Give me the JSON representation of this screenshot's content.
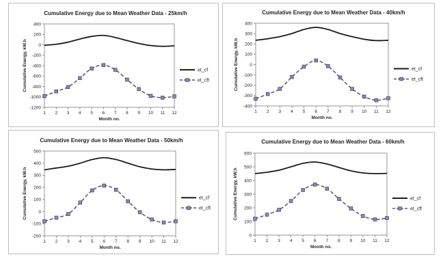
{
  "chart_data": [
    {
      "type": "line",
      "title": "Cumulative Energy due to Mean Weather Data - 25km/h",
      "xlabel": "Month no.",
      "ylabel": "Cumulative Energy, kW.h",
      "x": [
        1,
        2,
        3,
        4,
        5,
        6,
        7,
        8,
        9,
        10,
        11,
        12
      ],
      "xlim": [
        1,
        12
      ],
      "ylim": [
        -1200,
        400
      ],
      "yticks": [
        400,
        200,
        0,
        -200,
        -400,
        -600,
        -800,
        -1000,
        -1200
      ],
      "legend": "right",
      "series": [
        {
          "name": "et_cf",
          "color": "#1a1a1a",
          "style": "solid",
          "values": [
            -10,
            10,
            50,
            110,
            160,
            180,
            140,
            80,
            25,
            -15,
            -30,
            -20
          ]
        },
        {
          "name": "et_cft",
          "color": "#5a5a7a",
          "style": "dashed",
          "marker": "square",
          "values": [
            -985,
            -895,
            -810,
            -640,
            -455,
            -390,
            -480,
            -670,
            -850,
            -980,
            -1015,
            -990
          ]
        }
      ]
    },
    {
      "type": "line",
      "title": "Cumulative Energy due to Mean Weather Data - 40km/h",
      "xlabel": "Month no.",
      "ylabel": "Cumulative Energy, kW.h",
      "x": [
        1,
        2,
        3,
        4,
        5,
        6,
        7,
        8,
        9,
        10,
        11,
        12
      ],
      "xlim": [
        1,
        12
      ],
      "ylim": [
        -400,
        400
      ],
      "yticks": [
        400,
        300,
        200,
        100,
        0,
        -100,
        -200,
        -300,
        -400
      ],
      "legend": "right",
      "series": [
        {
          "name": "et_cf",
          "color": "#1a1a1a",
          "style": "solid",
          "values": [
            235,
            250,
            270,
            300,
            340,
            360,
            340,
            300,
            270,
            245,
            232,
            235
          ]
        },
        {
          "name": "et_cft",
          "color": "#5a5a7a",
          "style": "dashed",
          "marker": "square",
          "values": [
            -330,
            -285,
            -235,
            -120,
            -20,
            40,
            -15,
            -125,
            -235,
            -310,
            -345,
            -325
          ]
        }
      ]
    },
    {
      "type": "line",
      "title": "Cumulative Energy due to Mean Weather Data - 50km/h",
      "xlabel": "Month no.",
      "ylabel": "Cumulative Energy, kW.h",
      "x": [
        1,
        2,
        3,
        4,
        5,
        6,
        7,
        8,
        9,
        10,
        11,
        12
      ],
      "xlim": [
        1,
        12
      ],
      "ylim": [
        -200,
        500
      ],
      "yticks": [
        500,
        400,
        300,
        200,
        100,
        0,
        -100,
        -200
      ],
      "legend": "right",
      "series": [
        {
          "name": "et_cf",
          "color": "#1a1a1a",
          "style": "solid",
          "values": [
            345,
            360,
            375,
            400,
            430,
            445,
            430,
            400,
            370,
            352,
            345,
            348
          ]
        },
        {
          "name": "et_cft",
          "color": "#5a5a7a",
          "style": "dashed",
          "marker": "square",
          "values": [
            -80,
            -50,
            -20,
            75,
            175,
            215,
            180,
            85,
            -5,
            -65,
            -90,
            -80
          ]
        }
      ]
    },
    {
      "type": "line",
      "title": "Cumulative Energy due to Mean Weather Data - 60km/h",
      "xlabel": "Month no.",
      "ylabel": "Cumulative Energy, kW.h",
      "x": [
        1,
        2,
        3,
        4,
        5,
        6,
        7,
        8,
        9,
        10,
        11,
        12
      ],
      "xlim": [
        1,
        12
      ],
      "ylim": [
        0,
        600
      ],
      "yticks": [
        600,
        500,
        400,
        300,
        200,
        100,
        0
      ],
      "legend": "right",
      "series": [
        {
          "name": "et_cf",
          "color": "#1a1a1a",
          "style": "solid",
          "values": [
            450,
            460,
            475,
            500,
            525,
            535,
            520,
            495,
            470,
            455,
            450,
            452
          ]
        },
        {
          "name": "et_cft",
          "color": "#5a5a7a",
          "style": "dashed",
          "marker": "square",
          "values": [
            120,
            150,
            185,
            250,
            330,
            370,
            340,
            265,
            195,
            140,
            115,
            125
          ]
        }
      ]
    }
  ]
}
